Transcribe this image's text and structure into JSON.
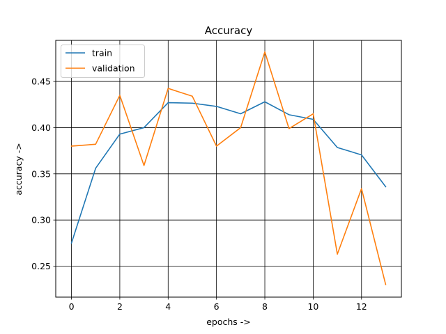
{
  "chart_data": {
    "type": "line",
    "title": "Accuracy",
    "xlabel": "epochs ->",
    "ylabel": "accuracy ->",
    "x": [
      0,
      1,
      2,
      3,
      4,
      5,
      6,
      7,
      8,
      9,
      10,
      11,
      12,
      13
    ],
    "xlim": [
      -0.65,
      13.65
    ],
    "ylim": [
      0.2165,
      0.4945
    ],
    "xticks": [
      0,
      2,
      4,
      6,
      8,
      10,
      12
    ],
    "xtick_labels": [
      "0",
      "2",
      "4",
      "6",
      "8",
      "10",
      "12"
    ],
    "yticks": [
      0.25,
      0.3,
      0.35,
      0.4,
      0.45
    ],
    "ytick_labels": [
      "0.25",
      "0.30",
      "0.35",
      "0.40",
      "0.45"
    ],
    "grid": true,
    "grid_color": "#000000",
    "legend_position": "top-left",
    "series": [
      {
        "name": "train",
        "color": "#1f77b4",
        "values": [
          0.275,
          0.356,
          0.393,
          0.4,
          0.427,
          0.4265,
          0.423,
          0.415,
          0.428,
          0.414,
          0.409,
          0.3785,
          0.3705,
          0.336
        ]
      },
      {
        "name": "validation",
        "color": "#ff7f0e",
        "values": [
          0.38,
          0.382,
          0.435,
          0.359,
          0.4425,
          0.434,
          0.38,
          0.4,
          0.482,
          0.399,
          0.415,
          0.263,
          0.334,
          0.23
        ]
      }
    ]
  }
}
